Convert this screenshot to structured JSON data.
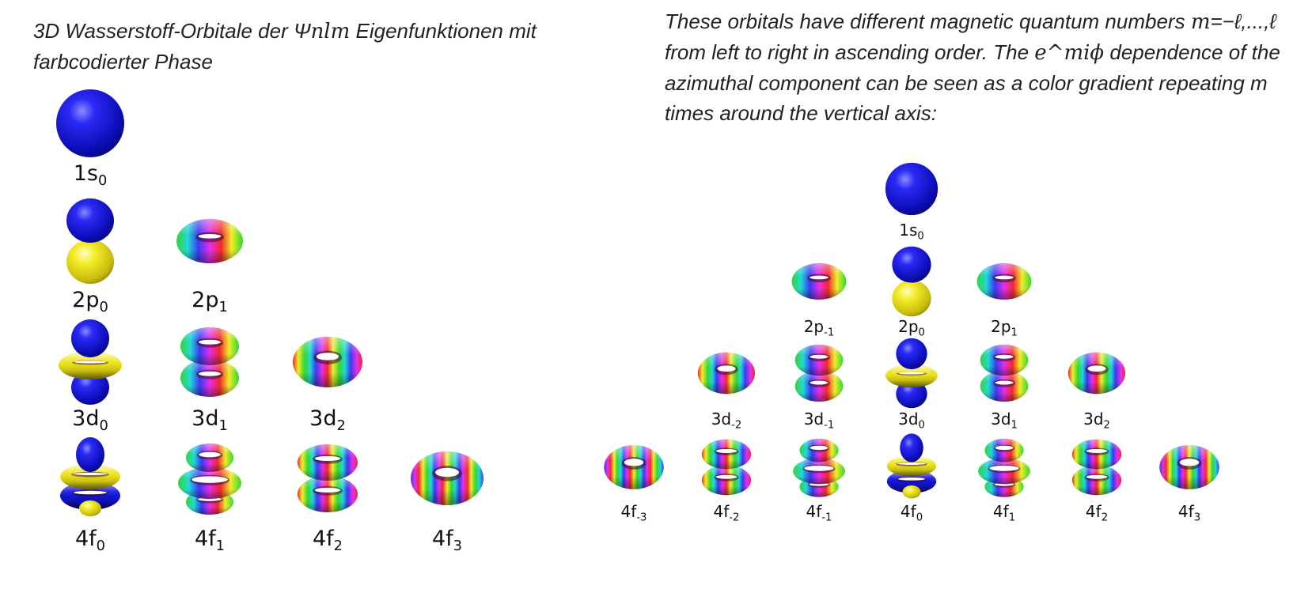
{
  "left_caption": {
    "pre": "3D Wasserstoff-Orbitale der Ψ",
    "math": "nlm",
    "post": " Eigenfunktionen mit farbcodierter Phase"
  },
  "right_caption": {
    "t1": "These orbitals have different magnetic quantum numbers ",
    "m1": "m",
    "t2": "=−ℓ,...,ℓ from left to right in ascending order.  The ",
    "m2": "e^miϕ",
    "t3": " dependence of the azimuthal component can be seen as a color gradient repeating m times around the vertical axis:"
  },
  "left_orbitals": [
    {
      "base": "1s",
      "sub": "0"
    },
    {
      "base": "2p",
      "sub": "0"
    },
    {
      "base": "2p",
      "sub": "1"
    },
    {
      "base": "3d",
      "sub": "0"
    },
    {
      "base": "3d",
      "sub": "1"
    },
    {
      "base": "3d",
      "sub": "2"
    },
    {
      "base": "4f",
      "sub": "0"
    },
    {
      "base": "4f",
      "sub": "1"
    },
    {
      "base": "4f",
      "sub": "2"
    },
    {
      "base": "4f",
      "sub": "3"
    }
  ],
  "right_orbitals": [
    {
      "base": "1s",
      "sub": "0"
    },
    {
      "base": "2p",
      "sub": "-1"
    },
    {
      "base": "2p",
      "sub": "0"
    },
    {
      "base": "2p",
      "sub": "1"
    },
    {
      "base": "3d",
      "sub": "-2"
    },
    {
      "base": "3d",
      "sub": "-1"
    },
    {
      "base": "3d",
      "sub": "0"
    },
    {
      "base": "3d",
      "sub": "1"
    },
    {
      "base": "3d",
      "sub": "2"
    },
    {
      "base": "4f",
      "sub": "-3"
    },
    {
      "base": "4f",
      "sub": "-2"
    },
    {
      "base": "4f",
      "sub": "-1"
    },
    {
      "base": "4f",
      "sub": "0"
    },
    {
      "base": "4f",
      "sub": "1"
    },
    {
      "base": "4f",
      "sub": "2"
    },
    {
      "base": "4f",
      "sub": "3"
    }
  ],
  "colors": {
    "positive_lobe": "#1010e0",
    "negative_lobe": "#e8e020",
    "phase": "rainbow"
  }
}
